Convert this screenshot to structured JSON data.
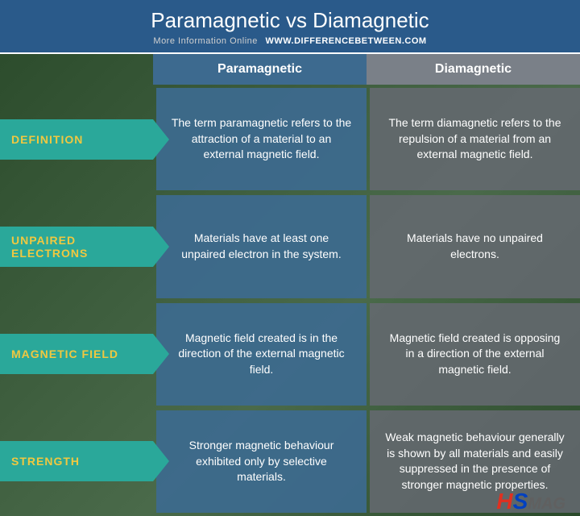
{
  "header": {
    "title": "Paramagnetic vs Diamagnetic",
    "subtitle_prefix": "More Information  Online",
    "subtitle_url": "WWW.DIFFERENCEBETWEEN.COM"
  },
  "columns": {
    "col1": "Paramagnetic",
    "col2": "Diamagnetic"
  },
  "rows": {
    "r0": {
      "label": "DEFINITION",
      "c1": "The term paramagnetic refers to the attraction of a material to an external magnetic field.",
      "c2": "The term diamagnetic refers to the repulsion of a material from an external magnetic field."
    },
    "r1": {
      "label": "UNPAIRED ELECTRONS",
      "c1": "Materials have at least one unpaired electron in the system.",
      "c2": "Materials have no unpaired electrons."
    },
    "r2": {
      "label": "MAGNETIC FIELD",
      "c1": "Magnetic field created is in the direction of the external magnetic field.",
      "c2": "Magnetic field created is opposing in a direction of the external magnetic field."
    },
    "r3": {
      "label": "STRENGTH",
      "c1": "Stronger magnetic behaviour exhibited only by selective materials.",
      "c2": "Weak magnetic behaviour generally is shown by all materials and easily suppressed in the presence of stronger magnetic properties."
    }
  },
  "logo": {
    "h": "H",
    "s": "S",
    "mag": "MAG"
  },
  "colors": {
    "header_bg": "#2a5a8a",
    "label_bg": "#2aa89a",
    "label_text": "#f0c840",
    "col1_bg": "#3d6a8f",
    "col2_bg": "#7a8088"
  }
}
